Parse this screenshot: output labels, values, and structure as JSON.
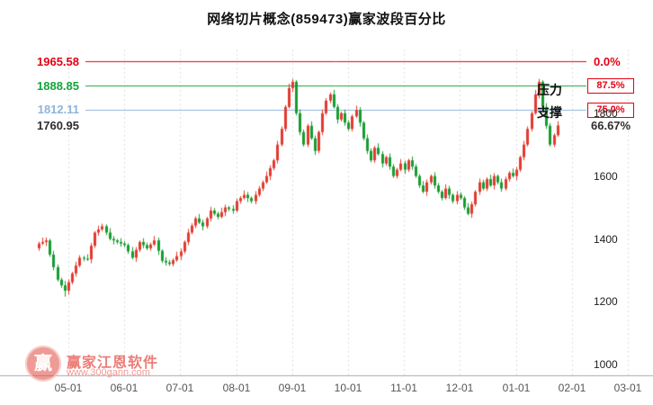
{
  "title": "网络切片概念(859473)赢家波段百分比",
  "levels": [
    {
      "price": "1965.58",
      "percent": "0.0%",
      "value": 1965.58,
      "color": "#e60012",
      "percent_color": "#e60012",
      "boxed": false,
      "line": true
    },
    {
      "price": "1888.85",
      "percent": "87.5%",
      "value": 1888.85,
      "color": "#13a538",
      "percent_color": "#e60012",
      "boxed": true,
      "line": true
    },
    {
      "price": "1812.11",
      "percent": "75.0%",
      "value": 1812.11,
      "color": "#8fb4da",
      "percent_color": "#e60012",
      "boxed": true,
      "line": true
    },
    {
      "price": "1760.95",
      "percent": "66.67%",
      "value": 1760.95,
      "color": "#2e2e2e",
      "percent_color": "#2e2e2e",
      "boxed": false,
      "line": false
    }
  ],
  "annotations": {
    "pressure": "压力",
    "support": "支撑"
  },
  "axes": {
    "y_ticks": [
      "1800",
      "1600",
      "1400",
      "1200",
      "1000"
    ],
    "y_values": [
      1800,
      1600,
      1400,
      1200,
      1000
    ],
    "x_ticks": [
      "05-01",
      "06-01",
      "07-01",
      "08-01",
      "09-01",
      "10-01",
      "11-01",
      "12-01",
      "01-01",
      "02-01",
      "03-01"
    ]
  },
  "watermark": {
    "brand": "赢家江恩软件",
    "url": "www.300gann.com",
    "logo_char": "赢"
  },
  "chart_data": {
    "type": "candlestick",
    "title": "网络切片概念(859473)赢家波段百分比",
    "ylim": [
      1000,
      1985
    ],
    "x_tick_labels": [
      "05-01",
      "06-01",
      "07-01",
      "08-01",
      "09-01",
      "10-01",
      "11-01",
      "12-01",
      "01-01",
      "02-01",
      "03-01"
    ],
    "y_tick_values": [
      1800,
      1600,
      1400,
      1200,
      1000
    ],
    "up_color": "#e23a2e",
    "down_color": "#169b2f",
    "grid": "vertical-dashed",
    "legend": "none",
    "horizontal_levels": [
      1965.58,
      1888.85,
      1812.11,
      1760.95
    ],
    "candles": [
      [
        1370,
        1391,
        1362,
        1385
      ],
      [
        1385,
        1404,
        1380,
        1390
      ],
      [
        1390,
        1404,
        1377,
        1395
      ],
      [
        1395,
        1400,
        1343,
        1350
      ],
      [
        1350,
        1362,
        1300,
        1310
      ],
      [
        1310,
        1318,
        1264,
        1270
      ],
      [
        1270,
        1276,
        1244,
        1252
      ],
      [
        1252,
        1266,
        1216,
        1235
      ],
      [
        1235,
        1271,
        1222,
        1262
      ],
      [
        1262,
        1295,
        1255,
        1290
      ],
      [
        1290,
        1327,
        1280,
        1315
      ],
      [
        1315,
        1348,
        1309,
        1340
      ],
      [
        1340,
        1346,
        1329,
        1337
      ],
      [
        1337,
        1351,
        1330,
        1335
      ],
      [
        1335,
        1387,
        1322,
        1378
      ],
      [
        1378,
        1425,
        1371,
        1420
      ],
      [
        1420,
        1442,
        1410,
        1430
      ],
      [
        1430,
        1448,
        1424,
        1440
      ],
      [
        1440,
        1446,
        1412,
        1420
      ],
      [
        1420,
        1434,
        1395,
        1400
      ],
      [
        1400,
        1409,
        1382,
        1395
      ],
      [
        1395,
        1400,
        1383,
        1390
      ],
      [
        1390,
        1402,
        1375,
        1385
      ],
      [
        1385,
        1393,
        1374,
        1380
      ],
      [
        1380,
        1386,
        1352,
        1360
      ],
      [
        1360,
        1374,
        1335,
        1340
      ],
      [
        1340,
        1374,
        1327,
        1365
      ],
      [
        1365,
        1395,
        1358,
        1390
      ],
      [
        1390,
        1402,
        1370,
        1380
      ],
      [
        1380,
        1388,
        1364,
        1370
      ],
      [
        1370,
        1388,
        1362,
        1382
      ],
      [
        1382,
        1409,
        1377,
        1395
      ],
      [
        1395,
        1404,
        1349,
        1362
      ],
      [
        1362,
        1367,
        1323,
        1330
      ],
      [
        1330,
        1342,
        1315,
        1325
      ],
      [
        1325,
        1333,
        1314,
        1320
      ],
      [
        1320,
        1338,
        1312,
        1332
      ],
      [
        1332,
        1359,
        1327,
        1345
      ],
      [
        1345,
        1369,
        1332,
        1360
      ],
      [
        1360,
        1395,
        1353,
        1390
      ],
      [
        1390,
        1432,
        1380,
        1420
      ],
      [
        1420,
        1450,
        1414,
        1442
      ],
      [
        1442,
        1471,
        1434,
        1465
      ],
      [
        1465,
        1479,
        1447,
        1452
      ],
      [
        1452,
        1461,
        1427,
        1440
      ],
      [
        1440,
        1470,
        1433,
        1465
      ],
      [
        1465,
        1502,
        1455,
        1490
      ],
      [
        1490,
        1498,
        1474,
        1480
      ],
      [
        1480,
        1486,
        1462,
        1470
      ],
      [
        1470,
        1499,
        1465,
        1485
      ],
      [
        1485,
        1509,
        1472,
        1500
      ],
      [
        1500,
        1505,
        1488,
        1495
      ],
      [
        1495,
        1507,
        1480,
        1490
      ],
      [
        1490,
        1528,
        1484,
        1520
      ],
      [
        1520,
        1536,
        1512,
        1530
      ],
      [
        1530,
        1554,
        1525,
        1540
      ],
      [
        1540,
        1549,
        1517,
        1530
      ],
      [
        1530,
        1535,
        1513,
        1520
      ],
      [
        1520,
        1552,
        1510,
        1540
      ],
      [
        1540,
        1568,
        1534,
        1560
      ],
      [
        1560,
        1586,
        1552,
        1580
      ],
      [
        1580,
        1614,
        1575,
        1600
      ],
      [
        1600,
        1634,
        1587,
        1625
      ],
      [
        1625,
        1655,
        1618,
        1650
      ],
      [
        1650,
        1712,
        1640,
        1700
      ],
      [
        1700,
        1758,
        1694,
        1750
      ],
      [
        1750,
        1826,
        1742,
        1820
      ],
      [
        1820,
        1894,
        1815,
        1880
      ],
      [
        1880,
        1909,
        1867,
        1900
      ],
      [
        1900,
        1905,
        1793,
        1800
      ],
      [
        1800,
        1812,
        1730,
        1740
      ],
      [
        1740,
        1748,
        1694,
        1700
      ],
      [
        1700,
        1766,
        1692,
        1760
      ],
      [
        1760,
        1774,
        1715,
        1720
      ],
      [
        1720,
        1729,
        1667,
        1680
      ],
      [
        1680,
        1745,
        1673,
        1740
      ],
      [
        1740,
        1812,
        1730,
        1800
      ],
      [
        1800,
        1848,
        1794,
        1840
      ],
      [
        1840,
        1866,
        1832,
        1860
      ],
      [
        1860,
        1874,
        1815,
        1820
      ],
      [
        1820,
        1829,
        1767,
        1780
      ],
      [
        1780,
        1805,
        1773,
        1800
      ],
      [
        1800,
        1812,
        1760,
        1770
      ],
      [
        1770,
        1778,
        1744,
        1750
      ],
      [
        1750,
        1796,
        1742,
        1790
      ],
      [
        1790,
        1824,
        1785,
        1810
      ],
      [
        1810,
        1819,
        1757,
        1770
      ],
      [
        1770,
        1775,
        1713,
        1720
      ],
      [
        1720,
        1732,
        1670,
        1680
      ],
      [
        1680,
        1688,
        1644,
        1650
      ],
      [
        1650,
        1696,
        1642,
        1690
      ],
      [
        1690,
        1704,
        1665,
        1670
      ],
      [
        1670,
        1679,
        1627,
        1640
      ],
      [
        1640,
        1665,
        1633,
        1660
      ],
      [
        1660,
        1672,
        1620,
        1630
      ],
      [
        1630,
        1638,
        1594,
        1600
      ],
      [
        1600,
        1626,
        1592,
        1620
      ],
      [
        1620,
        1654,
        1615,
        1640
      ],
      [
        1640,
        1649,
        1607,
        1620
      ],
      [
        1620,
        1655,
        1613,
        1650
      ],
      [
        1650,
        1662,
        1620,
        1630
      ],
      [
        1630,
        1638,
        1594,
        1600
      ],
      [
        1600,
        1606,
        1562,
        1570
      ],
      [
        1570,
        1584,
        1545,
        1550
      ],
      [
        1550,
        1589,
        1537,
        1580
      ],
      [
        1580,
        1605,
        1573,
        1600
      ],
      [
        1600,
        1612,
        1560,
        1570
      ],
      [
        1570,
        1578,
        1544,
        1550
      ],
      [
        1550,
        1556,
        1522,
        1530
      ],
      [
        1530,
        1574,
        1525,
        1560
      ],
      [
        1560,
        1569,
        1527,
        1540
      ],
      [
        1540,
        1545,
        1513,
        1520
      ],
      [
        1520,
        1552,
        1510,
        1540
      ],
      [
        1540,
        1548,
        1524,
        1530
      ],
      [
        1530,
        1536,
        1492,
        1500
      ],
      [
        1500,
        1514,
        1475,
        1480
      ],
      [
        1480,
        1519,
        1467,
        1510
      ],
      [
        1510,
        1555,
        1503,
        1550
      ],
      [
        1550,
        1592,
        1540,
        1580
      ],
      [
        1580,
        1588,
        1554,
        1560
      ],
      [
        1560,
        1596,
        1552,
        1590
      ],
      [
        1590,
        1604,
        1565,
        1570
      ],
      [
        1570,
        1609,
        1557,
        1600
      ],
      [
        1600,
        1605,
        1573,
        1580
      ],
      [
        1580,
        1592,
        1550,
        1560
      ],
      [
        1560,
        1598,
        1554,
        1590
      ],
      [
        1590,
        1616,
        1582,
        1610
      ],
      [
        1610,
        1624,
        1595,
        1600
      ],
      [
        1600,
        1629,
        1587,
        1620
      ],
      [
        1620,
        1665,
        1613,
        1660
      ],
      [
        1660,
        1712,
        1650,
        1700
      ],
      [
        1700,
        1758,
        1694,
        1750
      ],
      [
        1750,
        1806,
        1742,
        1800
      ],
      [
        1800,
        1874,
        1795,
        1860
      ],
      [
        1860,
        1909,
        1847,
        1900
      ],
      [
        1900,
        1905,
        1813,
        1820
      ],
      [
        1820,
        1832,
        1750,
        1760
      ],
      [
        1760,
        1768,
        1694,
        1700
      ],
      [
        1700,
        1736,
        1692,
        1730
      ],
      [
        1730,
        1775,
        1725,
        1761
      ]
    ]
  }
}
